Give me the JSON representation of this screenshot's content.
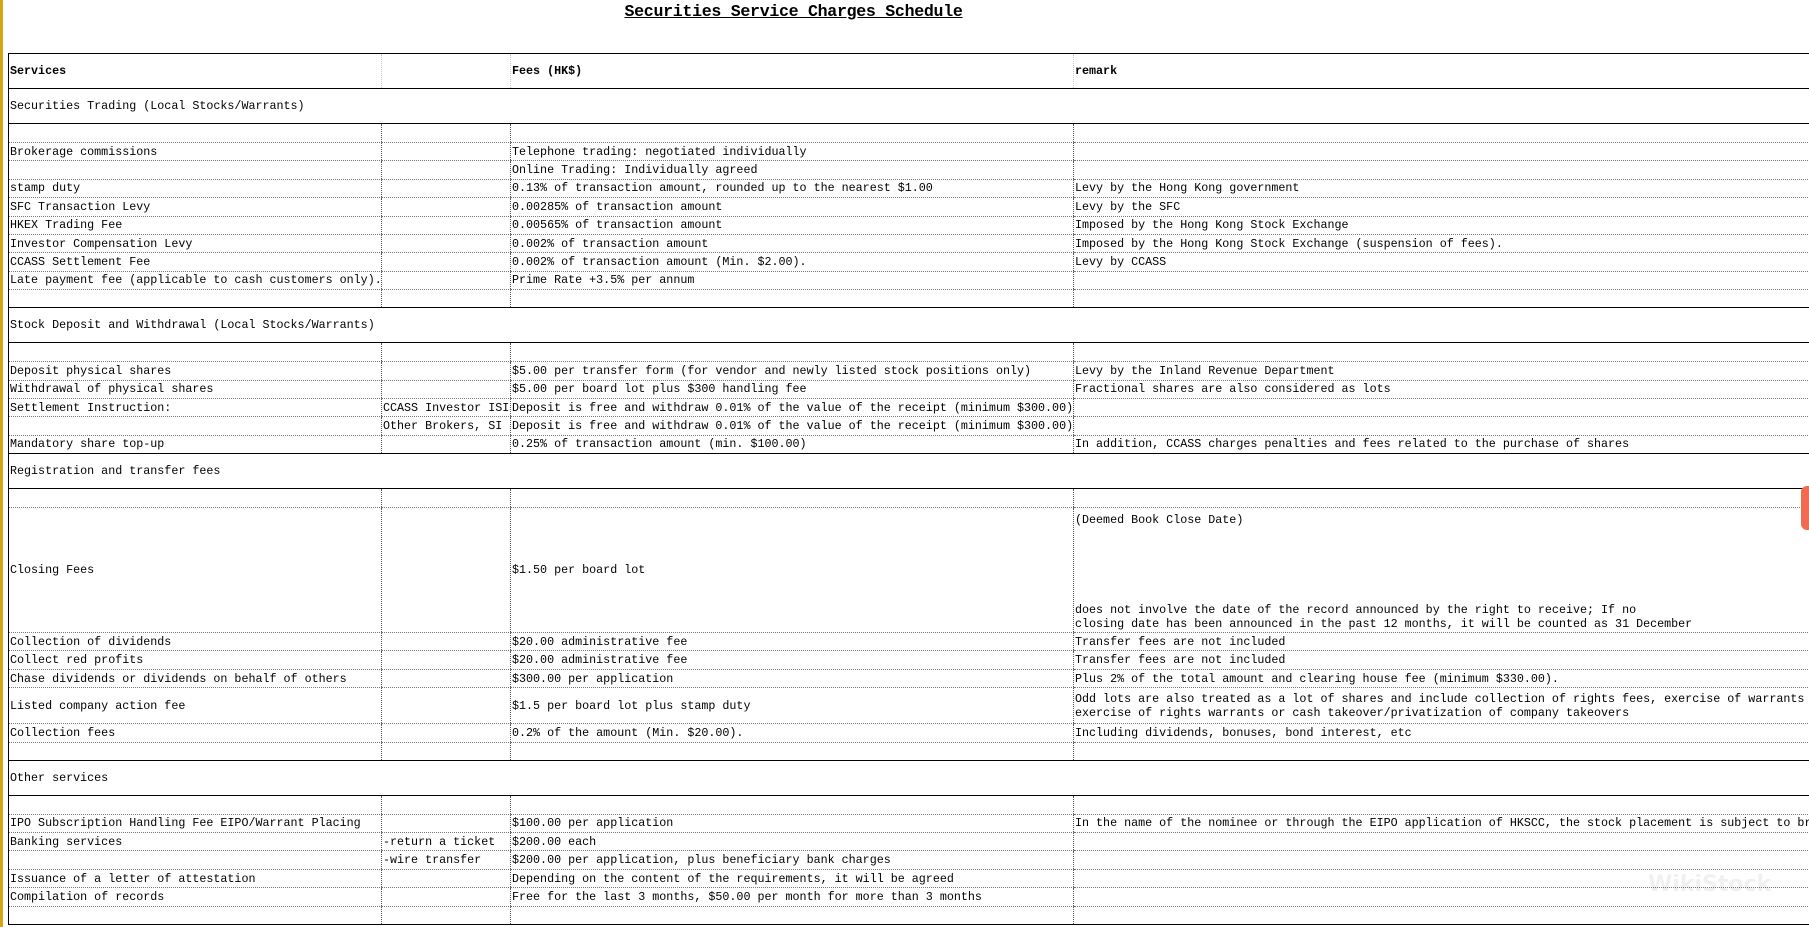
{
  "title": "Securities Service Charges Schedule",
  "columns": [
    "Services",
    "",
    "Fees (HK$)",
    "remark"
  ],
  "sections": [
    {
      "title": "Securities Trading (Local Stocks/Warrants)",
      "trailing_blank": true,
      "rows": [
        {
          "service": "Brokerage commissions",
          "sub": "",
          "fee": "Telephone trading: negotiated individually",
          "remark": ""
        },
        {
          "service": "",
          "sub": "",
          "fee": "Online Trading: Individually agreed",
          "remark": ""
        },
        {
          "service": "stamp duty",
          "sub": "",
          "fee": "0.13% of transaction amount, rounded up to the nearest $1.00",
          "remark": "Levy by the Hong Kong government"
        },
        {
          "service": "SFC Transaction Levy",
          "sub": "",
          "fee": "0.00285% of transaction amount",
          "remark": "Levy by the SFC"
        },
        {
          "service": "HKEX Trading Fee",
          "sub": "",
          "fee": "0.00565% of transaction amount",
          "remark": "Imposed by the Hong Kong Stock Exchange"
        },
        {
          "service": "Investor Compensation Levy",
          "sub": "",
          "fee": "0.002% of transaction amount",
          "remark": "Imposed by the Hong Kong Stock Exchange (suspension of fees)."
        },
        {
          "service": "CCASS Settlement Fee",
          "sub": "",
          "fee": "0.002% of transaction amount (Min. $2.00).",
          "remark": "Levy by CCASS"
        },
        {
          "service": "Late payment fee (applicable to cash customers only).",
          "sub": "",
          "fee": "Prime Rate +3.5% per annum",
          "remark": ""
        }
      ]
    },
    {
      "title": "Stock Deposit and Withdrawal (Local Stocks/Warrants)",
      "trailing_blank": false,
      "rows": [
        {
          "service": "Deposit physical shares",
          "sub": "",
          "fee": "$5.00 per transfer form (for vendor and newly listed stock positions only)",
          "remark": "Levy by the Inland Revenue Department"
        },
        {
          "service": "Withdrawal of physical shares",
          "sub": "",
          "fee": "$5.00 per board lot plus $300 handling fee",
          "remark": "Fractional shares are also considered as lots"
        },
        {
          "service": "Settlement Instruction:",
          "sub": "CCASS Investor ISI",
          "fee": "Deposit is free and withdraw 0.01% of the value of the receipt (minimum $300.00)",
          "remark": ""
        },
        {
          "service": "",
          "sub": "Other Brokers, SI",
          "fee": "Deposit is free and withdraw 0.01% of the value of the receipt (minimum $300.00)",
          "remark": ""
        },
        {
          "service": "Mandatory share top-up",
          "sub": "",
          "fee": "0.25% of transaction amount (min. $100.00)",
          "remark": "In addition, CCASS charges penalties and fees related to the purchase of shares"
        }
      ]
    },
    {
      "title": "Registration and transfer fees",
      "trailing_blank": true,
      "rows": [
        {
          "service": "Closing Fees",
          "sub": "",
          "fee": "$1.50 per board lot",
          "remark": [
            "(Deemed Book Close Date)",
            "does not involve the date of the record announced by the right to receive; If no",
            "closing date has been announced in the past 12 months, it will be counted as 31 December"
          ]
        },
        {
          "service": "Collection of dividends",
          "sub": "",
          "fee": "$20.00 administrative fee",
          "remark": "Transfer fees are not included"
        },
        {
          "service": "Collect red profits",
          "sub": "",
          "fee": "$20.00 administrative fee",
          "remark": "Transfer fees are not included"
        },
        {
          "service": "Chase dividends or dividends on behalf of others",
          "sub": "",
          "fee": "$300.00 per application",
          "remark": "Plus 2% of the total amount and clearing house fee (minimum $330.00)."
        },
        {
          "service": "Listed company action fee",
          "sub": "",
          "fee": "$1.5 per board lot plus stamp duty",
          "remark": [
            "Odd lots are also treated as a lot of shares and include collection of rights fees, exercise of warrants",
            "exercise of rights warrants or cash takeover/privatization of company takeovers"
          ]
        },
        {
          "service": "Collection fees",
          "sub": "",
          "fee": "0.2% of the amount (Min. $20.00).",
          "remark": "Including dividends, bonuses, bond interest, etc"
        }
      ]
    },
    {
      "title": "Other services",
      "trailing_blank": true,
      "rows": [
        {
          "service": "IPO Subscription Handling Fee EIPO/Warrant Placing",
          "sub": "",
          "fee": "$100.00 per application",
          "remark": "In the name of the nominee or through the EIPO application of HKSCC, the stock placement is subject to br"
        },
        {
          "service": "Banking services",
          "sub": "-return a ticket",
          "fee": "$200.00 each",
          "remark": ""
        },
        {
          "service": "",
          "sub": "-wire transfer",
          "fee": "$200.00 per application, plus beneficiary bank charges",
          "remark": ""
        },
        {
          "service": "Issuance of a letter of attestation",
          "sub": "",
          "fee": "Depending on the content of the requirements, it will be agreed",
          "remark": ""
        },
        {
          "service": "Compilation of records",
          "sub": "",
          "fee": "Free for the last 3 months, $50.00 per month for more than 3 months",
          "remark": ""
        }
      ]
    }
  ],
  "watermark": "WikiStock",
  "colors": {
    "left_bar": "#d9a514",
    "right_tab": "#f26a52"
  }
}
